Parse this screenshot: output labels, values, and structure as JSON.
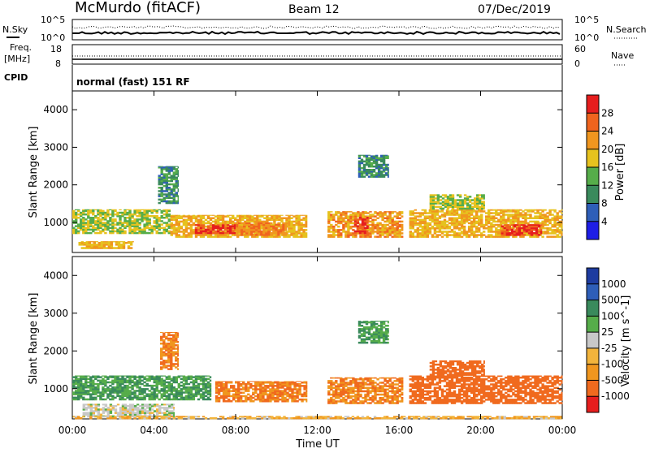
{
  "header": {
    "station": "McMurdo (fitACF)",
    "beam": "Beam 12",
    "date": "07/Dec/2019",
    "nsky_label": "N.Sky",
    "nsearch_label": "N.Search",
    "freq_label_1": "Freq.",
    "freq_label_2": "[MHz]",
    "nave_label": "Nave",
    "cpid_label": "CPID",
    "cpid_value": "normal (fast) 151 RF",
    "noise_ticks": [
      "10^5",
      "10^0"
    ],
    "freq_ticks": [
      "18",
      "8"
    ],
    "nave_ticks": [
      "60",
      "0"
    ]
  },
  "colors": {
    "power_scale": [
      "#1e1ee6",
      "#2e5eb8",
      "#3a8a5c",
      "#56ad4a",
      "#e6c21e",
      "#f0961e",
      "#f0641e",
      "#e61e1e"
    ],
    "velocity_scale": [
      "#e61e1e",
      "#f06a1e",
      "#f0961e",
      "#f2b43c",
      "#c8c8c8",
      "#56ad4a",
      "#3a8a5c",
      "#2e5eb8",
      "#1e3ca0"
    ]
  },
  "chart_data": [
    {
      "type": "heatmap",
      "panel": "power",
      "ylabel": "Slant Range [km]",
      "xlabel": "",
      "x_ticks": [
        "00:00",
        "04:00",
        "08:00",
        "12:00",
        "16:00",
        "20:00",
        "00:00"
      ],
      "y_ticks": [
        "1000",
        "2000",
        "3000",
        "4000"
      ],
      "ylim": [
        200,
        4500
      ],
      "xlim_hours": [
        0,
        24
      ],
      "colorbar_label": "Power [dB]",
      "colorbar_ticks": [
        "4",
        "8",
        "12",
        "16",
        "20",
        "24",
        "28"
      ],
      "echo_regions": [
        {
          "t0": 0.0,
          "t1": 4.8,
          "r0": 700,
          "r1": 1350,
          "level": 16
        },
        {
          "t0": 0.3,
          "t1": 3.0,
          "r0": 300,
          "r1": 500,
          "level": 20
        },
        {
          "t0": 4.2,
          "t1": 5.2,
          "r0": 1500,
          "r1": 2500,
          "level": 10
        },
        {
          "t0": 4.8,
          "t1": 11.5,
          "r0": 600,
          "r1": 1200,
          "level": 20
        },
        {
          "t0": 6.0,
          "t1": 8.0,
          "r0": 700,
          "r1": 950,
          "level": 28
        },
        {
          "t0": 8.0,
          "t1": 10.5,
          "r0": 650,
          "r1": 1000,
          "level": 24
        },
        {
          "t0": 12.5,
          "t1": 16.2,
          "r0": 600,
          "r1": 1300,
          "level": 22
        },
        {
          "t0": 13.8,
          "t1": 14.5,
          "r0": 700,
          "r1": 1150,
          "level": 28
        },
        {
          "t0": 14.0,
          "t1": 15.5,
          "r0": 2200,
          "r1": 2800,
          "level": 10
        },
        {
          "t0": 16.5,
          "t1": 24.0,
          "r0": 600,
          "r1": 1350,
          "level": 20
        },
        {
          "t0": 17.5,
          "t1": 20.2,
          "r0": 1350,
          "r1": 1750,
          "level": 16
        },
        {
          "t0": 21.0,
          "t1": 23.0,
          "r0": 650,
          "r1": 950,
          "level": 28
        }
      ]
    },
    {
      "type": "heatmap",
      "panel": "velocity",
      "ylabel": "Slant Range [km]",
      "xlabel": "Time UT",
      "x_ticks": [
        "00:00",
        "04:00",
        "08:00",
        "12:00",
        "16:00",
        "20:00",
        "00:00"
      ],
      "y_ticks": [
        "1000",
        "2000",
        "3000",
        "4000"
      ],
      "ylim": [
        200,
        4500
      ],
      "xlim_hours": [
        0,
        24
      ],
      "colorbar_label": "Velocity [m s^-1]",
      "colorbar_ticks": [
        "1000",
        "500",
        "100",
        "25",
        "-25",
        "-100",
        "-500",
        "-1000"
      ],
      "echo_regions": [
        {
          "t0": 0.0,
          "t1": 6.8,
          "r0": 700,
          "r1": 1350,
          "level": 100
        },
        {
          "t0": 0.5,
          "t1": 5.0,
          "r0": 250,
          "r1": 600,
          "level": 0
        },
        {
          "t0": 4.3,
          "t1": 5.2,
          "r0": 1500,
          "r1": 2500,
          "level": -100
        },
        {
          "t0": 7.0,
          "t1": 11.5,
          "r0": 650,
          "r1": 1200,
          "level": -100
        },
        {
          "t0": 12.5,
          "t1": 16.2,
          "r0": 600,
          "r1": 1300,
          "level": -100
        },
        {
          "t0": 14.0,
          "t1": 15.5,
          "r0": 2200,
          "r1": 2800,
          "level": 100
        },
        {
          "t0": 16.5,
          "t1": 24.0,
          "r0": 600,
          "r1": 1350,
          "level": -300
        },
        {
          "t0": 17.5,
          "t1": 20.2,
          "r0": 1350,
          "r1": 1750,
          "level": -300
        },
        {
          "t0": 0.0,
          "t1": 24.0,
          "r0": 200,
          "r1": 280,
          "level": -50
        }
      ]
    }
  ]
}
